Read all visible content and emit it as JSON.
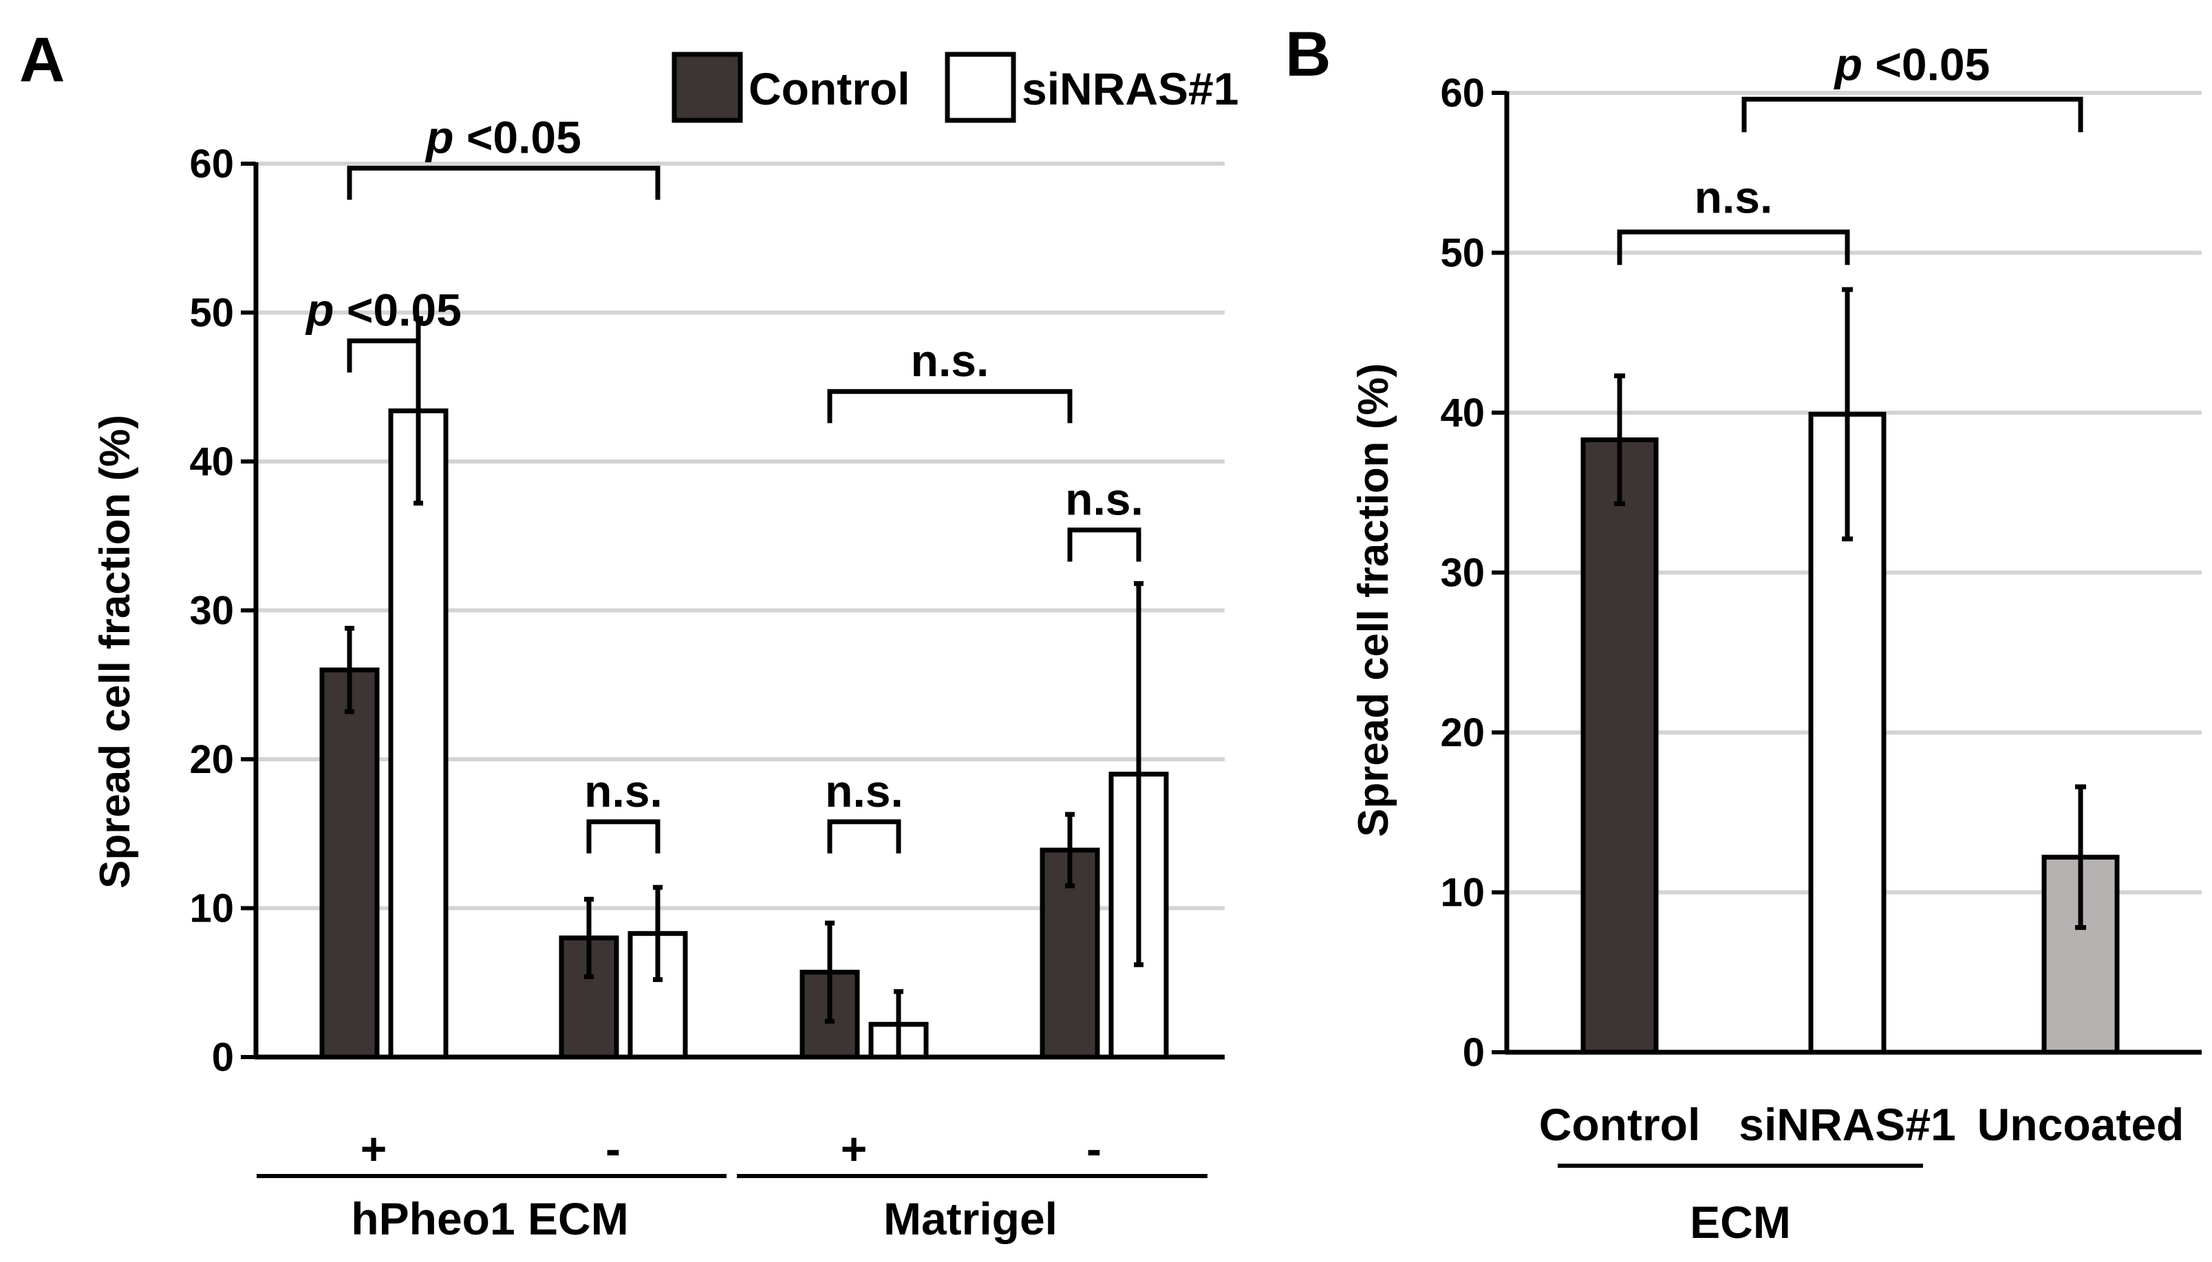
{
  "panels": {
    "A": {
      "letter": "A"
    },
    "B": {
      "letter": "B"
    }
  },
  "colors": {
    "control": "#3d3533",
    "sinras": "#ffffff",
    "uncoated": "#b5b2b1",
    "grid": "#d4d4d4",
    "axis": "#000000"
  },
  "chart_data": [
    {
      "panel": "A",
      "type": "bar",
      "ylabel": "Spread cell fraction (%)",
      "ylim": [
        0,
        60
      ],
      "yticks": [
        0,
        10,
        20,
        30,
        40,
        50,
        60
      ],
      "grid": true,
      "legend_position": "top",
      "legend": [
        {
          "label": "Control",
          "color_key": "control"
        },
        {
          "label": "siNRAS#1",
          "color_key": "sinras"
        }
      ],
      "categories": [
        "+",
        "-",
        "+",
        "-"
      ],
      "groups": [
        {
          "label": "hPheo1 ECM",
          "categories": [
            0,
            1
          ]
        },
        {
          "label": "Matrigel",
          "categories": [
            2,
            3
          ]
        }
      ],
      "series": [
        {
          "name": "Control",
          "color_key": "control",
          "values": [
            26.0,
            8.0,
            5.7,
            13.9
          ],
          "errors": [
            2.8,
            2.6,
            3.3,
            2.4
          ]
        },
        {
          "name": "siNRAS#1",
          "color_key": "sinras",
          "values": [
            43.4,
            8.3,
            2.2,
            19.0
          ],
          "errors": [
            6.2,
            3.1,
            2.2,
            12.8
          ]
        }
      ],
      "annotations": [
        {
          "text_prefix": "p",
          "text": " <0.05",
          "from": [
            0,
            0
          ],
          "to": [
            0,
            1
          ],
          "level": 48.1
        },
        {
          "text_prefix": "p",
          "text": " <0.05",
          "from": [
            0,
            0
          ],
          "to": [
            1,
            1
          ],
          "level": 59.7
        },
        {
          "text_prefix": "",
          "text": "n.s.",
          "from": [
            1,
            0
          ],
          "to": [
            1,
            1
          ],
          "level": 15.8
        },
        {
          "text_prefix": "",
          "text": "n.s.",
          "from": [
            2,
            0
          ],
          "to": [
            2,
            1
          ],
          "level": 15.8
        },
        {
          "text_prefix": "",
          "text": "n.s.",
          "from": [
            3,
            0
          ],
          "to": [
            3,
            1
          ],
          "level": 35.4
        },
        {
          "text_prefix": "",
          "text": "n.s.",
          "from": [
            2,
            0
          ],
          "to": [
            3,
            0
          ],
          "level": 44.7
        }
      ]
    },
    {
      "panel": "B",
      "type": "bar",
      "ylabel": "Spread cell fraction (%)",
      "ylim": [
        0,
        60
      ],
      "yticks": [
        0,
        10,
        20,
        30,
        40,
        50,
        60
      ],
      "grid": true,
      "categories": [
        "Control",
        "siNRAS#1",
        "Uncoated"
      ],
      "groups": [
        {
          "label": "ECM",
          "categories": [
            0,
            1
          ]
        }
      ],
      "values": [
        38.3,
        39.9,
        12.2
      ],
      "errors": [
        4.0,
        7.8,
        4.4
      ],
      "color_keys": [
        "control",
        "sinras",
        "uncoated"
      ],
      "annotations": [
        {
          "text_prefix": "",
          "text": "n.s.",
          "from": 0,
          "to": 1,
          "level": 51.3
        },
        {
          "text_prefix": "p",
          "text": " <0.05",
          "from": 0.5,
          "to": 2,
          "level": 59.6
        }
      ]
    }
  ]
}
